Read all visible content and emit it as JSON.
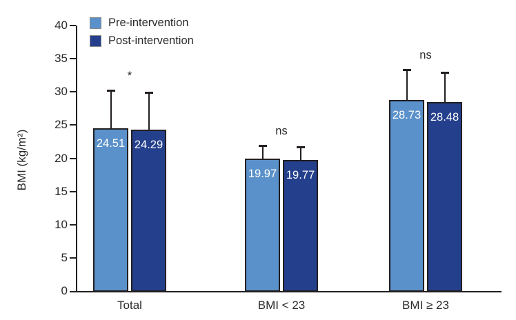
{
  "chart_data": {
    "type": "bar",
    "title": "",
    "categories": [
      "Total",
      "BMI < 23",
      "BMI ≥ 23"
    ],
    "series": [
      {
        "name": "Pre-intervention",
        "color": "#5A91CA",
        "values": [
          24.51,
          19.97,
          28.73
        ],
        "sd_upper": [
          5.7,
          2.0,
          4.6
        ]
      },
      {
        "name": "Post-intervention",
        "color": "#243F8C",
        "values": [
          24.29,
          19.77,
          28.48
        ],
        "sd_upper": [
          5.6,
          1.9,
          4.5
        ]
      }
    ],
    "significance_by_group": [
      "*",
      "ns",
      "ns"
    ],
    "ylabel": "BMI (kg/m²)",
    "ylim": [
      0,
      40
    ],
    "ytick_step": 5,
    "yticks": [
      0,
      5,
      10,
      15,
      20,
      25,
      30,
      35,
      40
    ],
    "grid": false,
    "legend_position": "top-left",
    "error_bars": "upper-only",
    "value_labels": "inside-top",
    "value_label_color": "#ffffff",
    "axis_color": "#231f20",
    "text_color": "#2b2b2b"
  }
}
